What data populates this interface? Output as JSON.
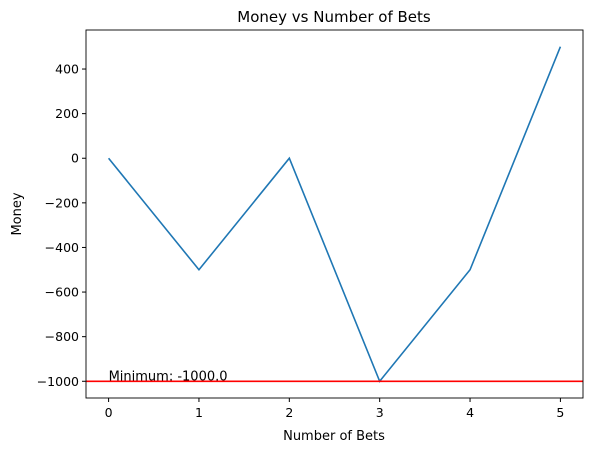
{
  "chart_data": {
    "type": "line",
    "title": "Money vs Number of Bets",
    "x_label": "Number of Bets",
    "y_label": "Money",
    "x": [
      0,
      1,
      2,
      3,
      4,
      5
    ],
    "values": [
      0,
      -500,
      0,
      -1000,
      -500,
      500
    ],
    "color": "#1f77b4",
    "xlim": [
      -0.25,
      5.25
    ],
    "xticks": [
      0,
      1,
      2,
      3,
      4,
      5
    ],
    "ylim": [
      -1075,
      575
    ],
    "yticks": [
      {
        "value": -1000,
        "label": "−1000"
      },
      {
        "value": -800,
        "label": "−800"
      },
      {
        "value": -600,
        "label": "−600"
      },
      {
        "value": -400,
        "label": "−400"
      },
      {
        "value": -200,
        "label": "−200"
      },
      0,
      200,
      400
    ],
    "hline": {
      "value": -1000,
      "color": "#ff0000",
      "label": "Minimum: -1000.0"
    }
  }
}
